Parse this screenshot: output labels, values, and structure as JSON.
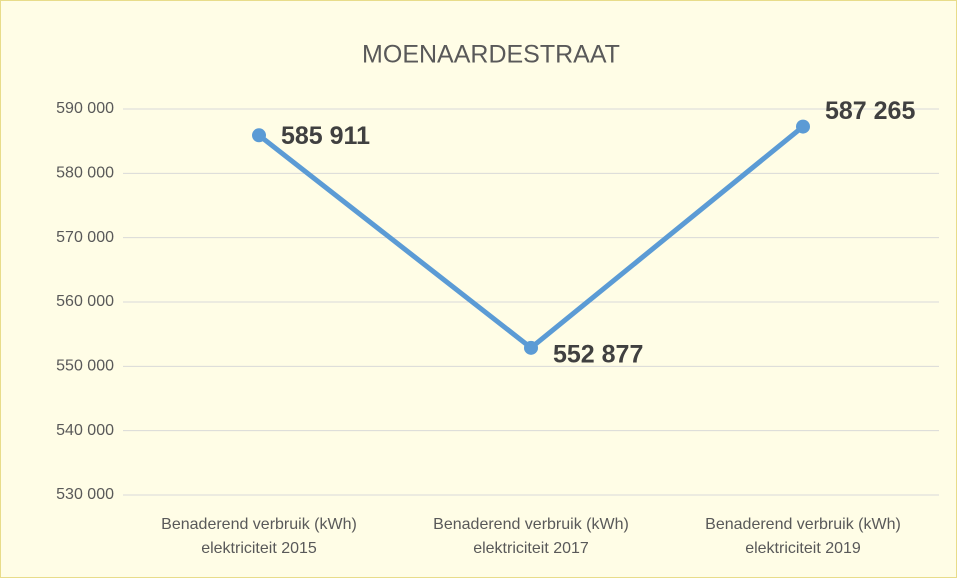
{
  "chart_data": {
    "type": "line",
    "title": "MOENAARDESTRAAT",
    "categories": [
      "Benaderend verbruik (kWh) elektriciteit 2015",
      "Benaderend verbruik (kWh) elektriciteit 2017",
      "Benaderend verbruik (kWh) elektriciteit 2019"
    ],
    "series": [
      {
        "name": "MOENAARDESTRAAT",
        "color": "#5b9bd5",
        "values": [
          585911,
          552877,
          587265
        ],
        "value_labels": [
          "585 911",
          "552 877",
          "587 265"
        ]
      }
    ],
    "ylim": [
      530000,
      590000
    ],
    "yticks": [
      {
        "value": 530000,
        "label": "530 000"
      },
      {
        "value": 540000,
        "label": "540 000"
      },
      {
        "value": 550000,
        "label": "550 000"
      },
      {
        "value": 560000,
        "label": "560 000"
      },
      {
        "value": 570000,
        "label": "570 000"
      },
      {
        "value": 580000,
        "label": "580 000"
      },
      {
        "value": 590000,
        "label": "590 000"
      }
    ],
    "grid": true
  }
}
